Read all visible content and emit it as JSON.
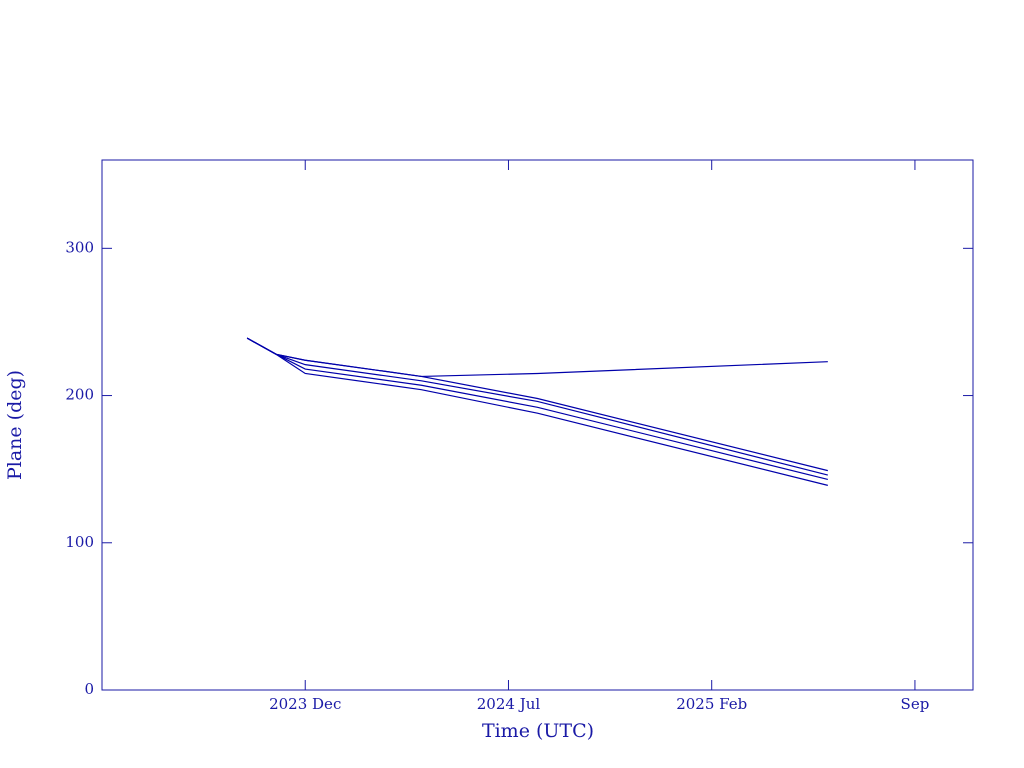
{
  "chart_data": {
    "type": "line",
    "xlabel": "Time (UTC)",
    "ylabel": "Plane (deg)",
    "x": [
      "2023-10",
      "2023-11",
      "2023-12",
      "2024-04",
      "2024-08",
      "2025-06"
    ],
    "series": [
      {
        "color": "#0000aa",
        "values": [
          239,
          228,
          224,
          213,
          215,
          223
        ]
      },
      {
        "color": "#0000aa",
        "values": [
          239,
          228,
          224,
          213,
          198,
          149
        ]
      },
      {
        "color": "#0000aa",
        "values": [
          239,
          228,
          221,
          210,
          196,
          146
        ]
      },
      {
        "color": "#0000aa",
        "values": [
          239,
          228,
          218,
          207,
          192,
          143
        ]
      },
      {
        "color": "#0000aa",
        "values": [
          239,
          228,
          215,
          204,
          188,
          139
        ]
      }
    ],
    "xlim": [
      "2023-05",
      "2025-11"
    ],
    "xticks": [
      {
        "value": "2023-12",
        "label": "2023 Dec"
      },
      {
        "value": "2024-07",
        "label": "2024 Jul"
      },
      {
        "value": "2025-02",
        "label": "2025 Feb"
      },
      {
        "value": "2025-09",
        "label": "Sep"
      }
    ],
    "ylim": [
      0,
      360
    ],
    "yticks": [
      0,
      100,
      200,
      300
    ],
    "axis_color": "#1a1aa6"
  }
}
